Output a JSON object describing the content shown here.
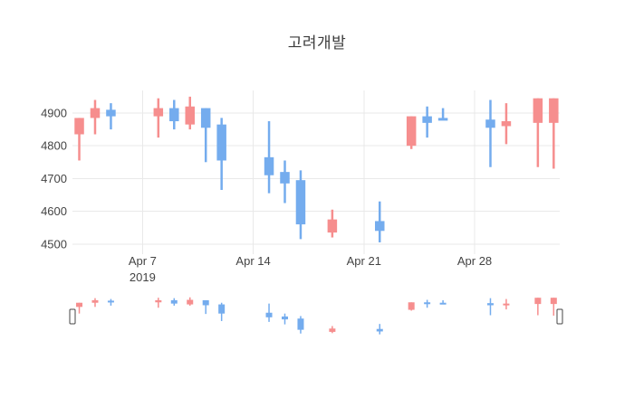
{
  "header": {
    "title": "고려개발"
  },
  "chart_data": {
    "type": "candlestick",
    "title": "고려개발",
    "increasing_color": "#f68e8e",
    "decreasing_color": "#74acee",
    "grid_color": "#e9e9e9",
    "tick_color": "#444444",
    "background_color": "#ffffff",
    "legend": "none",
    "grid": "on",
    "ylabel": "",
    "xlabel": "",
    "y_range": [
      4469,
      4969
    ],
    "yticks": [
      4500,
      4600,
      4700,
      4800,
      4900
    ],
    "xticks": [
      {
        "label": "Apr 7",
        "sublabel": "2019",
        "day": 6
      },
      {
        "label": "Apr 14",
        "sublabel": "",
        "day": 13
      },
      {
        "label": "Apr 21",
        "sublabel": "",
        "day": 20
      },
      {
        "label": "Apr 28",
        "sublabel": "",
        "day": 27
      }
    ],
    "x_axis_start_date": "2019-04-01",
    "candles": [
      {
        "date": "2019-04-03",
        "open": 4835,
        "high": 4885,
        "low": 4755,
        "close": 4885
      },
      {
        "date": "2019-04-04",
        "open": 4885,
        "high": 4940,
        "low": 4835,
        "close": 4915
      },
      {
        "date": "2019-04-05",
        "open": 4910,
        "high": 4930,
        "low": 4850,
        "close": 4890
      },
      {
        "date": "2019-04-08",
        "open": 4890,
        "high": 4945,
        "low": 4825,
        "close": 4915
      },
      {
        "date": "2019-04-09",
        "open": 4915,
        "high": 4940,
        "low": 4850,
        "close": 4875
      },
      {
        "date": "2019-04-10",
        "open": 4865,
        "high": 4950,
        "low": 4850,
        "close": 4920
      },
      {
        "date": "2019-04-11",
        "open": 4915,
        "high": 4915,
        "low": 4750,
        "close": 4855
      },
      {
        "date": "2019-04-12",
        "open": 4865,
        "high": 4885,
        "low": 4665,
        "close": 4755
      },
      {
        "date": "2019-04-15",
        "open": 4765,
        "high": 4875,
        "low": 4655,
        "close": 4710
      },
      {
        "date": "2019-04-16",
        "open": 4720,
        "high": 4755,
        "low": 4625,
        "close": 4685
      },
      {
        "date": "2019-04-17",
        "open": 4695,
        "high": 4725,
        "low": 4515,
        "close": 4560
      },
      {
        "date": "2019-04-19",
        "open": 4535,
        "high": 4605,
        "low": 4520,
        "close": 4575
      },
      {
        "date": "2019-04-22",
        "open": 4570,
        "high": 4630,
        "low": 4505,
        "close": 4540
      },
      {
        "date": "2019-04-24",
        "open": 4800,
        "high": 4890,
        "low": 4790,
        "close": 4890
      },
      {
        "date": "2019-04-25",
        "open": 4890,
        "high": 4920,
        "low": 4825,
        "close": 4870
      },
      {
        "date": "2019-04-26",
        "open": 4885,
        "high": 4915,
        "low": 4880,
        "close": 4880
      },
      {
        "date": "2019-04-29",
        "open": 4880,
        "high": 4940,
        "low": 4735,
        "close": 4855
      },
      {
        "date": "2019-04-30",
        "open": 4860,
        "high": 4930,
        "low": 4805,
        "close": 4875
      },
      {
        "date": "2019-05-02",
        "open": 4870,
        "high": 4945,
        "low": 4735,
        "close": 4945
      },
      {
        "date": "2019-05-03",
        "open": 4870,
        "high": 4945,
        "low": 4730,
        "close": 4945
      }
    ],
    "rangeslider": {
      "visible": true
    }
  }
}
